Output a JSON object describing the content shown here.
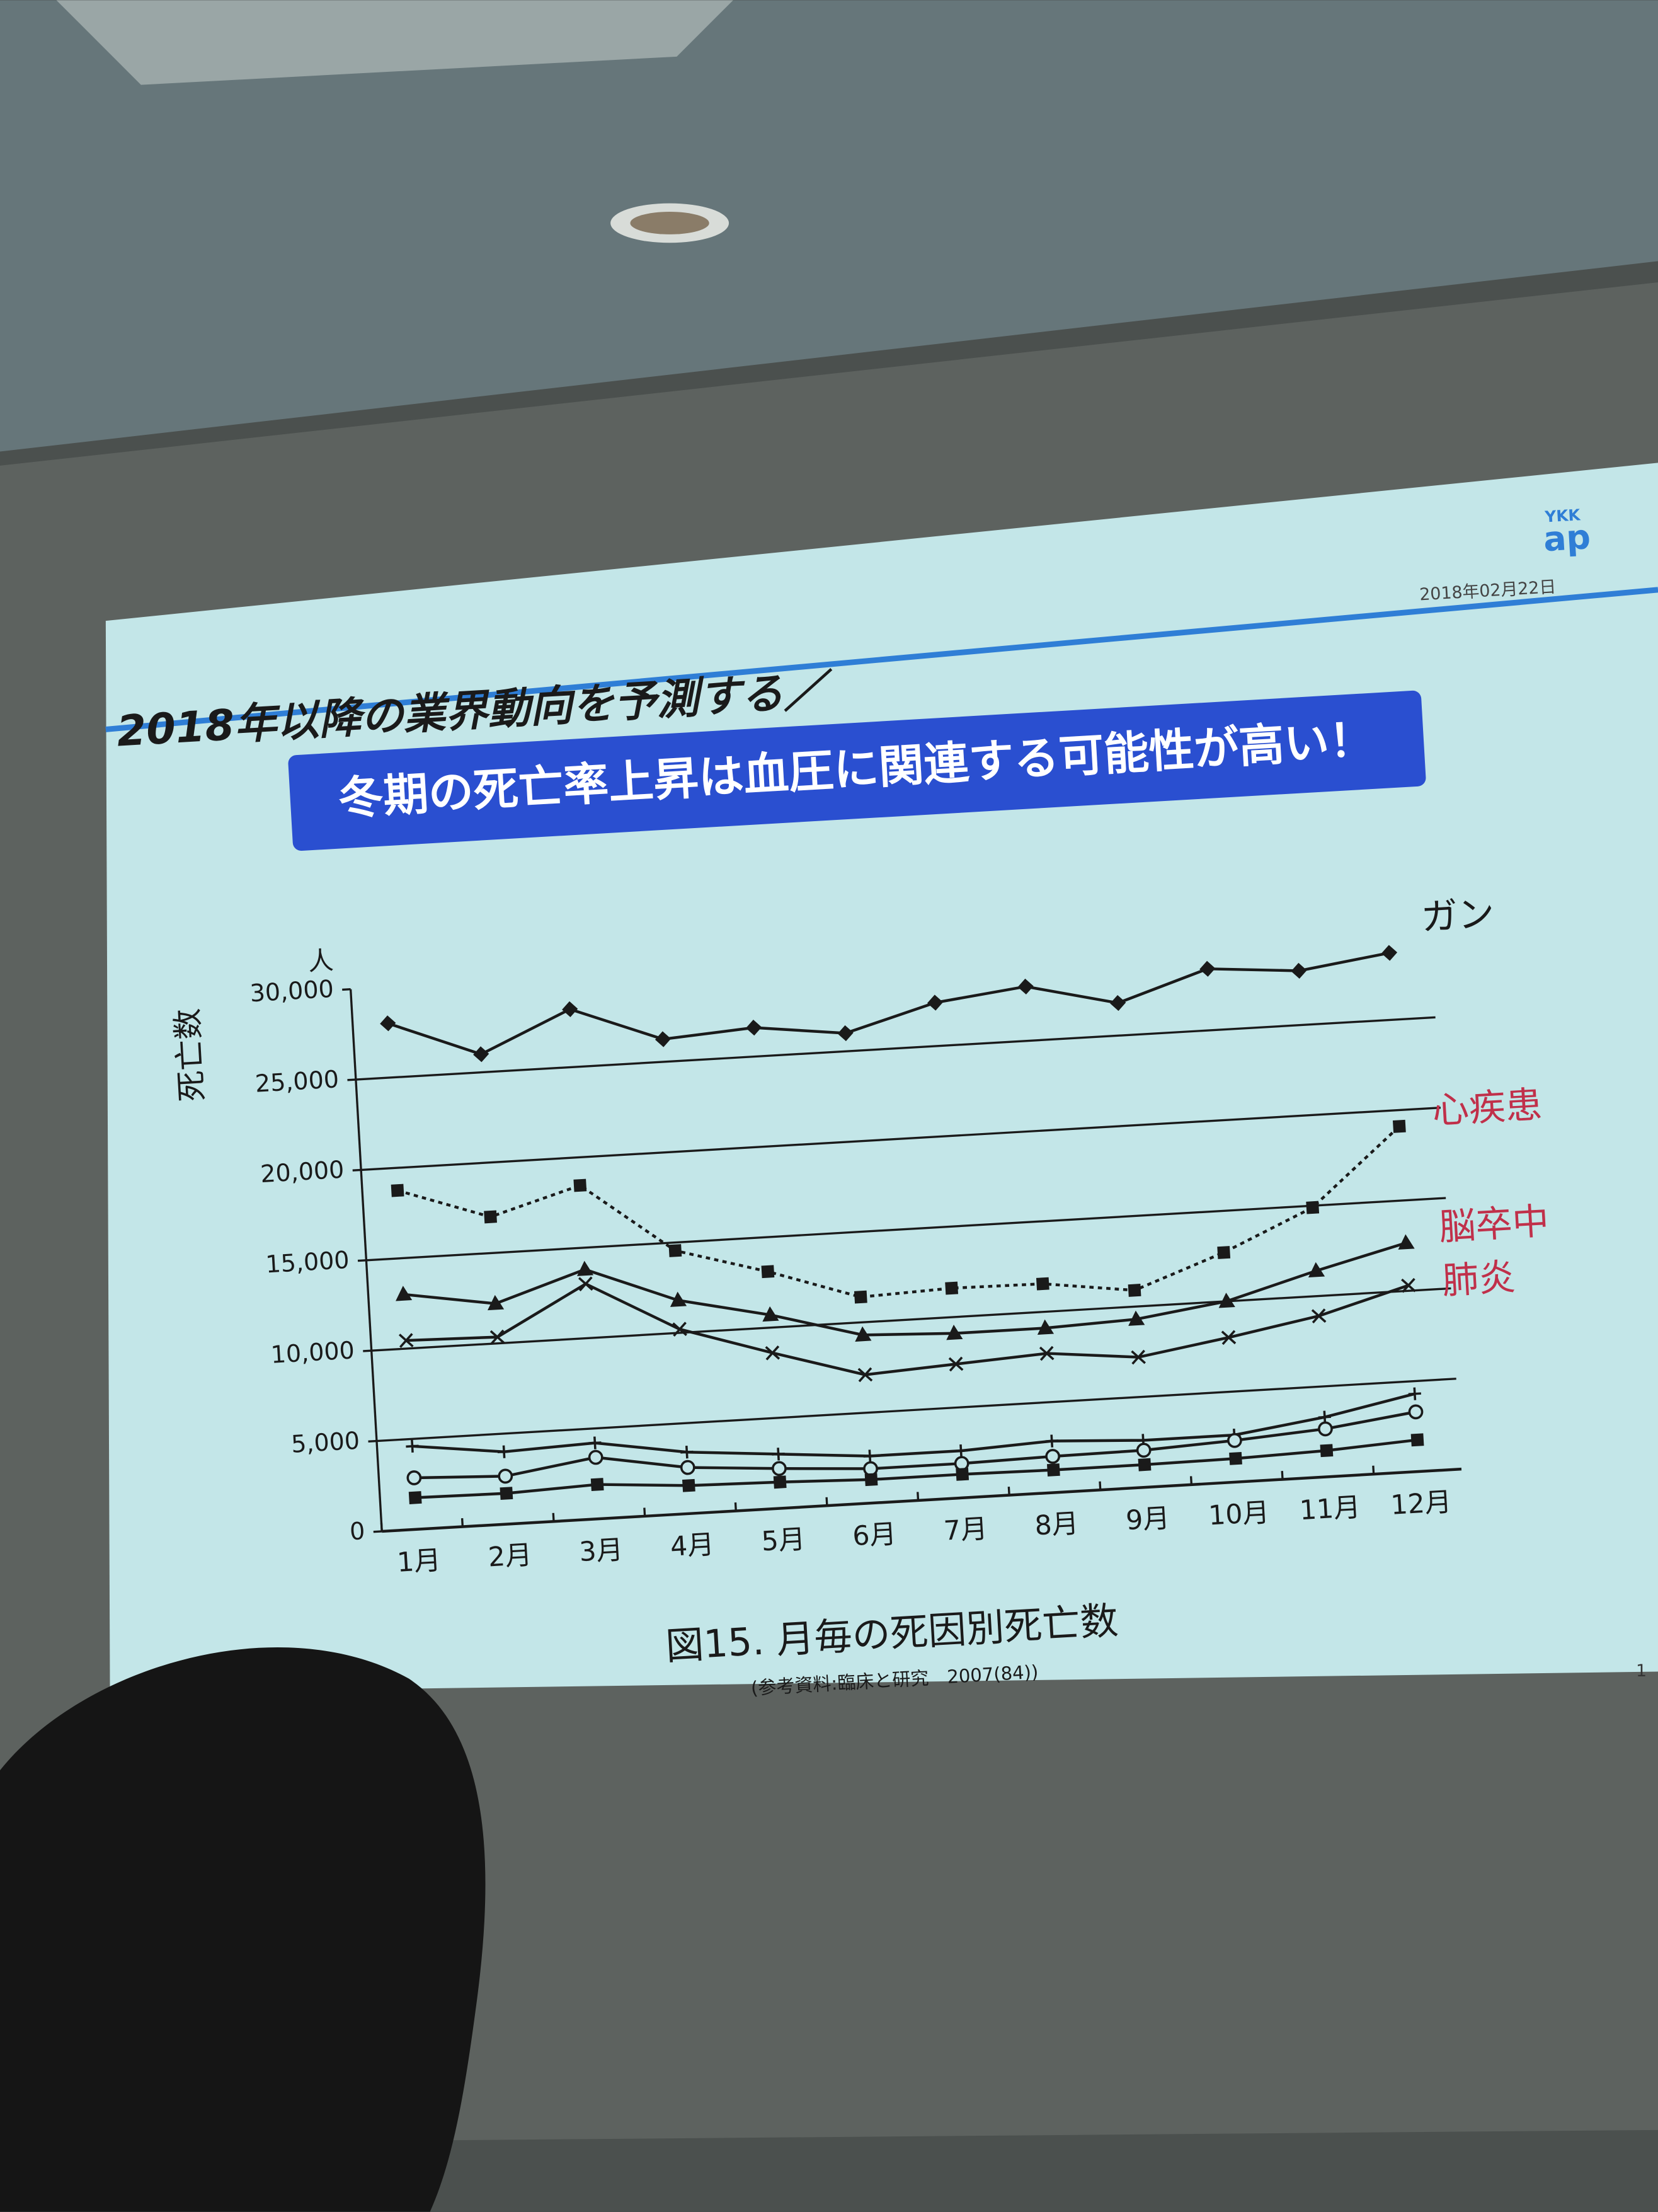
{
  "logo": {
    "top": "YKK",
    "main": "ap"
  },
  "date": "2018年02月22日",
  "slide_title": "2018年以降の業界動向を予測する／",
  "banner": "冬期の死亡率上昇は血圧に関連する可能性が高い！",
  "caption": "図15. 月毎の死因別死亡数",
  "source": "(参考資料:臨床と研究　2007(84))",
  "page_number": "1",
  "chart_data": {
    "type": "line",
    "y_label": "死亡数",
    "y_unit": "人",
    "categories": [
      "1月",
      "2月",
      "3月",
      "4月",
      "5月",
      "6月",
      "7月",
      "8月",
      "9月",
      "10月",
      "11月",
      "12月"
    ],
    "ylim": [
      0,
      30000
    ],
    "yticks": [
      0,
      {
        "value": 5000,
        "label": "5,000"
      },
      {
        "value": 10000,
        "label": "10,000"
      },
      {
        "value": 15000,
        "label": "15,000"
      },
      {
        "value": 20000,
        "label": "20,000"
      },
      {
        "value": 25000,
        "label": "25,000"
      },
      {
        "value": 30000,
        "label": "30,000"
      }
    ],
    "grid": true,
    "series": [
      {
        "name": "ガン",
        "color": "#1a1a1a",
        "label_color": "#1a1a1a",
        "marker": "diamond",
        "values": [
          28000,
          26000,
          28200,
          26250,
          26600,
          26000,
          27400,
          28000,
          26800,
          28400,
          28000,
          28700
        ]
      },
      {
        "name": "心疾患",
        "color": "#1a1a1a",
        "label_color": "#c0304a",
        "marker": "square",
        "dotted": true,
        "values": [
          18750,
          17000,
          18450,
          14550,
          13100,
          11400,
          11600,
          11550,
          10900,
          12700,
          14900,
          19100
        ]
      },
      {
        "name": "脳卒中",
        "color": "#1a1a1a",
        "label_color": "#c0304a",
        "marker": "triangle",
        "values": [
          13000,
          12200,
          13800,
          11800,
          10700,
          9300,
          9100,
          9100,
          9300,
          10000,
          11400,
          12650
        ]
      },
      {
        "name": "肺炎",
        "color": "#1a1a1a",
        "label_color": "#c0304a",
        "marker": "x",
        "values": [
          10450,
          10350,
          13000,
          10200,
          8600,
          7100,
          7400,
          7700,
          7200,
          8000,
          8900,
          10300
        ]
      },
      {
        "color": "#1a1a1a",
        "marker": "plus",
        "values": [
          4600,
          4000,
          4200,
          3400,
          3000,
          2600,
          2600,
          2850,
          2600,
          2600,
          3300,
          4300
        ]
      },
      {
        "color": "#1a1a1a",
        "marker": "circle",
        "values": [
          2850,
          2650,
          3400,
          2550,
          2200,
          1900,
          1900,
          2000,
          2050,
          2300,
          2650,
          3300
        ]
      },
      {
        "color": "#1a1a1a",
        "marker": "square",
        "values": [
          1750,
          1700,
          1900,
          1550,
          1450,
          1300,
          1300,
          1250,
          1250,
          1300,
          1450,
          1750
        ]
      }
    ]
  }
}
